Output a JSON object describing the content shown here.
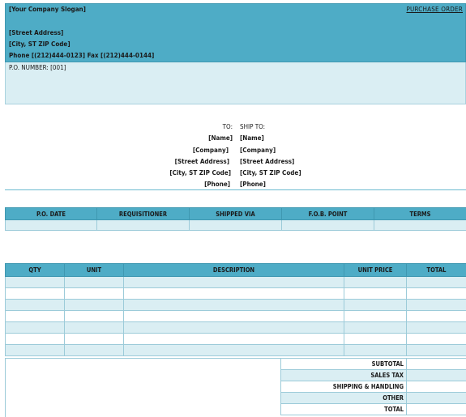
{
  "header": {
    "slogan": "[Your Company Slogan]",
    "doc_title": "PURCHASE ORDER",
    "street": "[Street Address]",
    "city": "[City, ST  ZIP Code]",
    "phone_fax": "Phone [(212)444-0123]   Fax [(212)444-0144]",
    "po_number": "P.O. NUMBER: [001]"
  },
  "to": {
    "label": "TO:",
    "name": "[Name]",
    "company": "[Company]",
    "street": "[Street Address]",
    "city": "[City, ST  ZIP Code]",
    "phone": "[Phone]"
  },
  "ship_to": {
    "label": "SHIP TO:",
    "name": "[Name]",
    "company": "[Company]",
    "street": "[Street Address]",
    "city": "[City, ST  ZIP Code]",
    "phone": "[Phone]"
  },
  "info_table": {
    "headers": [
      "P.O. DATE",
      "REQUISITIONER",
      "SHIPPED VIA",
      "F.O.B. POINT",
      "TERMS"
    ]
  },
  "items_table": {
    "headers": [
      "QTY",
      "UNIT",
      "DESCRIPTION",
      "UNIT PRICE",
      "TOTAL"
    ]
  },
  "totals": {
    "subtotal": "SUBTOTAL",
    "sales_tax": "SALES TAX",
    "shipping": "SHIPPING & HANDLING",
    "other": "OTHER",
    "total": "TOTAL"
  },
  "colors": {
    "header_band": "#4eacc6",
    "light_fill": "#daeef3"
  }
}
